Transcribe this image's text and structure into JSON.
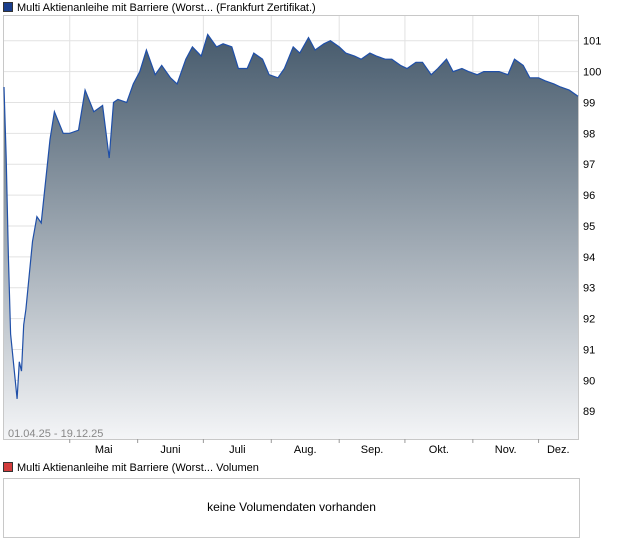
{
  "colors": {
    "price_swatch": "#1a3e8c",
    "volume_swatch": "#d23c3c",
    "line": "#1f4fa8",
    "fill_top": "#465a6c",
    "fill_bottom": "#f4f5f7",
    "grid": "#e2e2e2"
  },
  "price_legend": "Multi Aktienanleihe mit Barriere (Worst... (Frankfurt Zertifikat.)",
  "volume_legend": "Multi Aktienanleihe mit Barriere (Worst... Volumen",
  "volume_message": "keine Volumendaten vorhanden",
  "chart_data": {
    "type": "area",
    "date_range": "01.04.25 - 19.12.25",
    "x_axis_labels": [
      "Mai",
      "Juni",
      "Juli",
      "Aug.",
      "Sep.",
      "Okt.",
      "Nov.",
      "Dez."
    ],
    "y_ticks": [
      89,
      90,
      91,
      92,
      93,
      94,
      95,
      96,
      97,
      98,
      99,
      100,
      101
    ],
    "ylim": [
      88.1,
      101.8
    ],
    "xlim": [
      "2025-04-01",
      "2025-12-19"
    ],
    "grid": true,
    "legend_position": "top-left",
    "series": [
      {
        "x": [
          "2025-04-01",
          "2025-04-02",
          "2025-04-03",
          "2025-04-04",
          "2025-04-07",
          "2025-04-08",
          "2025-04-09",
          "2025-04-10",
          "2025-04-11",
          "2025-04-14",
          "2025-04-16",
          "2025-04-18",
          "2025-04-22",
          "2025-04-24",
          "2025-04-28",
          "2025-05-01",
          "2025-05-05",
          "2025-05-08",
          "2025-05-12",
          "2025-05-14",
          "2025-05-16",
          "2025-05-19",
          "2025-05-21",
          "2025-05-23",
          "2025-05-27",
          "2025-05-30",
          "2025-06-02",
          "2025-06-05",
          "2025-06-09",
          "2025-06-12",
          "2025-06-16",
          "2025-06-19",
          "2025-06-23",
          "2025-06-26",
          "2025-06-30",
          "2025-07-03",
          "2025-07-07",
          "2025-07-10",
          "2025-07-14",
          "2025-07-17",
          "2025-07-21",
          "2025-07-24",
          "2025-07-28",
          "2025-07-31",
          "2025-08-04",
          "2025-08-07",
          "2025-08-11",
          "2025-08-14",
          "2025-08-18",
          "2025-08-21",
          "2025-08-25",
          "2025-08-28",
          "2025-09-01",
          "2025-09-04",
          "2025-09-08",
          "2025-09-11",
          "2025-09-15",
          "2025-09-18",
          "2025-09-22",
          "2025-09-25",
          "2025-09-29",
          "2025-10-02",
          "2025-10-06",
          "2025-10-09",
          "2025-10-13",
          "2025-10-16",
          "2025-10-20",
          "2025-10-23",
          "2025-10-27",
          "2025-10-30",
          "2025-11-03",
          "2025-11-06",
          "2025-11-10",
          "2025-11-13",
          "2025-11-17",
          "2025-11-20",
          "2025-11-24",
          "2025-11-27",
          "2025-12-01",
          "2025-12-04",
          "2025-12-08",
          "2025-12-11",
          "2025-12-15",
          "2025-12-19"
        ],
        "y": [
          99.5,
          97.2,
          94.0,
          91.5,
          89.4,
          90.6,
          90.3,
          91.8,
          92.3,
          94.5,
          95.3,
          95.1,
          97.8,
          98.7,
          98.0,
          98.0,
          98.1,
          99.4,
          98.7,
          98.8,
          98.9,
          97.2,
          99.0,
          99.1,
          99.0,
          99.6,
          100.0,
          100.7,
          99.9,
          100.2,
          99.8,
          99.6,
          100.4,
          100.8,
          100.5,
          101.2,
          100.8,
          100.9,
          100.8,
          100.1,
          100.1,
          100.6,
          100.4,
          99.9,
          99.8,
          100.1,
          100.8,
          100.6,
          101.1,
          100.7,
          100.9,
          101.0,
          100.8,
          100.6,
          100.5,
          100.4,
          100.6,
          100.5,
          100.4,
          100.4,
          100.2,
          100.1,
          100.3,
          100.3,
          99.9,
          100.1,
          100.4,
          100.0,
          100.1,
          100.0,
          99.9,
          100.0,
          100.0,
          100.0,
          99.9,
          100.4,
          100.2,
          99.8,
          99.8,
          99.7,
          99.6,
          99.5,
          99.4,
          99.2
        ]
      }
    ]
  }
}
